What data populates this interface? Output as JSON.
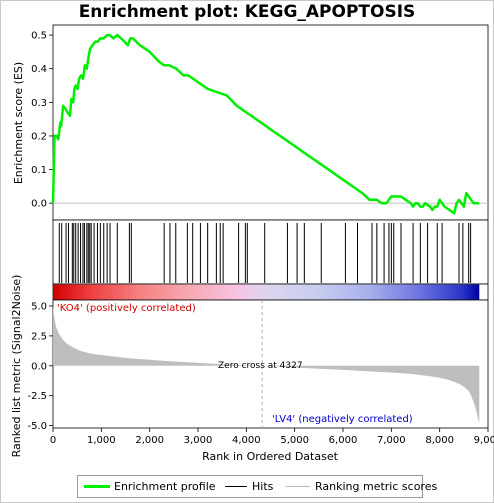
{
  "title": "Enrichment plot: KEGG_APOPTOSIS",
  "colors": {
    "profile": "#00ee00",
    "hits": "#000000",
    "metric_fill": "#bebebe",
    "pos_label": "#cc0000",
    "neg_label": "#0000cc"
  },
  "legend": {
    "profile": "Enrichment profile",
    "hits": "Hits",
    "metric": "Ranking metric scores"
  },
  "chart_data": [
    {
      "type": "line",
      "panel": "enrichment-score",
      "ylabel": "Enrichment score (ES)",
      "xlim": [
        0,
        9000
      ],
      "ylim": [
        -0.05,
        0.53
      ],
      "yticks": [
        "0.0",
        "0.1",
        "0.2",
        "0.3",
        "0.4",
        "0.5"
      ],
      "grid": false,
      "series": [
        {
          "name": "Enrichment profile",
          "x": [
            0,
            30,
            70,
            110,
            150,
            170,
            210,
            260,
            300,
            350,
            380,
            420,
            440,
            470,
            510,
            540,
            580,
            620,
            660,
            700,
            740,
            770,
            820,
            870,
            920,
            980,
            1050,
            1120,
            1180,
            1250,
            1330,
            1410,
            1480,
            1550,
            1600,
            1650,
            1800,
            2000,
            2200,
            2300,
            2400,
            2550,
            2700,
            2800,
            3000,
            3200,
            3400,
            3600,
            3800,
            4000,
            4200,
            4400,
            4600,
            4800,
            5000,
            5200,
            5400,
            5600,
            5800,
            6000,
            6200,
            6400,
            6550,
            6600,
            6700,
            6800,
            6900,
            6950,
            7000,
            7100,
            7200,
            7300,
            7400,
            7450,
            7500,
            7550,
            7600,
            7650,
            7700,
            7800,
            7850,
            7900,
            7950,
            8000,
            8050,
            8100,
            8200,
            8300,
            8350,
            8400,
            8450,
            8500,
            8550,
            8600,
            8650,
            8700,
            8750,
            8820
          ],
          "y": [
            0.0,
            0.2,
            0.2,
            0.19,
            0.24,
            0.23,
            0.29,
            0.28,
            0.27,
            0.26,
            0.31,
            0.3,
            0.34,
            0.35,
            0.34,
            0.37,
            0.38,
            0.37,
            0.41,
            0.4,
            0.44,
            0.46,
            0.47,
            0.48,
            0.48,
            0.49,
            0.49,
            0.5,
            0.5,
            0.49,
            0.5,
            0.49,
            0.48,
            0.47,
            0.49,
            0.49,
            0.47,
            0.45,
            0.42,
            0.41,
            0.41,
            0.4,
            0.38,
            0.38,
            0.36,
            0.34,
            0.33,
            0.32,
            0.29,
            0.27,
            0.25,
            0.23,
            0.21,
            0.19,
            0.17,
            0.15,
            0.13,
            0.11,
            0.09,
            0.07,
            0.05,
            0.03,
            0.01,
            0.01,
            0.01,
            0.0,
            0.0,
            0.01,
            0.02,
            0.02,
            0.02,
            0.01,
            0.0,
            -0.01,
            0.0,
            0.0,
            -0.01,
            -0.01,
            0.0,
            -0.01,
            -0.02,
            -0.01,
            -0.01,
            0.01,
            0.0,
            -0.01,
            -0.02,
            -0.03,
            0.0,
            0.01,
            0.0,
            -0.01,
            0.03,
            0.02,
            0.01,
            0.0,
            0.0,
            0.0
          ]
        }
      ]
    },
    {
      "type": "scatter",
      "panel": "hits",
      "series": [
        {
          "name": "Hits",
          "x": [
            130,
            180,
            270,
            320,
            400,
            430,
            470,
            520,
            570,
            620,
            650,
            700,
            730,
            760,
            790,
            850,
            920,
            980,
            1050,
            1120,
            1180,
            1330,
            1580,
            1620,
            2300,
            2420,
            2540,
            2780,
            2890,
            3050,
            3200,
            3380,
            3460,
            3520,
            3840,
            3980,
            4020,
            4380,
            4850,
            5050,
            5200,
            5550,
            6050,
            6300,
            6600,
            6700,
            6850,
            6950,
            7000,
            7050,
            7200,
            7450,
            7600,
            7750,
            7950,
            8050,
            8400,
            8480,
            8600,
            8640
          ]
        }
      ]
    },
    {
      "type": "area",
      "panel": "ranked-list-metric",
      "xlabel": "Rank in Ordered Dataset",
      "ylabel": "Ranked list metric (Signal2Noise)",
      "xlim": [
        0,
        9000
      ],
      "ylim": [
        -5.2,
        5.5
      ],
      "yticks": [
        "-5.0",
        "-2.5",
        "0.0",
        "2.5",
        "5.0"
      ],
      "xticks": [
        "0",
        "1,000",
        "2,000",
        "3,000",
        "4,000",
        "5,000",
        "6,000",
        "7,000",
        "8,000",
        "9,000"
      ],
      "series": [
        {
          "name": "Ranking metric scores",
          "x": [
            0,
            20,
            60,
            120,
            200,
            300,
            450,
            600,
            800,
            1000,
            1300,
            1600,
            2000,
            2500,
            3000,
            3500,
            4000,
            4327,
            4600,
            5000,
            5500,
            6000,
            6500,
            7000,
            7400,
            7800,
            8000,
            8200,
            8400,
            8500,
            8600,
            8650,
            8700,
            8740,
            8770,
            8800,
            8820
          ],
          "y": [
            5.0,
            4.2,
            3.3,
            2.7,
            2.2,
            1.8,
            1.45,
            1.2,
            1.0,
            0.9,
            0.75,
            0.62,
            0.5,
            0.36,
            0.24,
            0.13,
            0.05,
            0.0,
            -0.06,
            -0.14,
            -0.24,
            -0.34,
            -0.45,
            -0.56,
            -0.68,
            -0.88,
            -1.0,
            -1.2,
            -1.5,
            -1.75,
            -2.1,
            -2.5,
            -3.0,
            -3.5,
            -4.0,
            -4.5,
            -4.75
          ]
        }
      ]
    }
  ],
  "annotations": {
    "pos_label": "'KO4' (positively correlated)",
    "neg_label": "'LV4' (negatively correlated)",
    "zero_cross_label": "Zero cross at 4327",
    "zero_cross_x": 4327
  }
}
